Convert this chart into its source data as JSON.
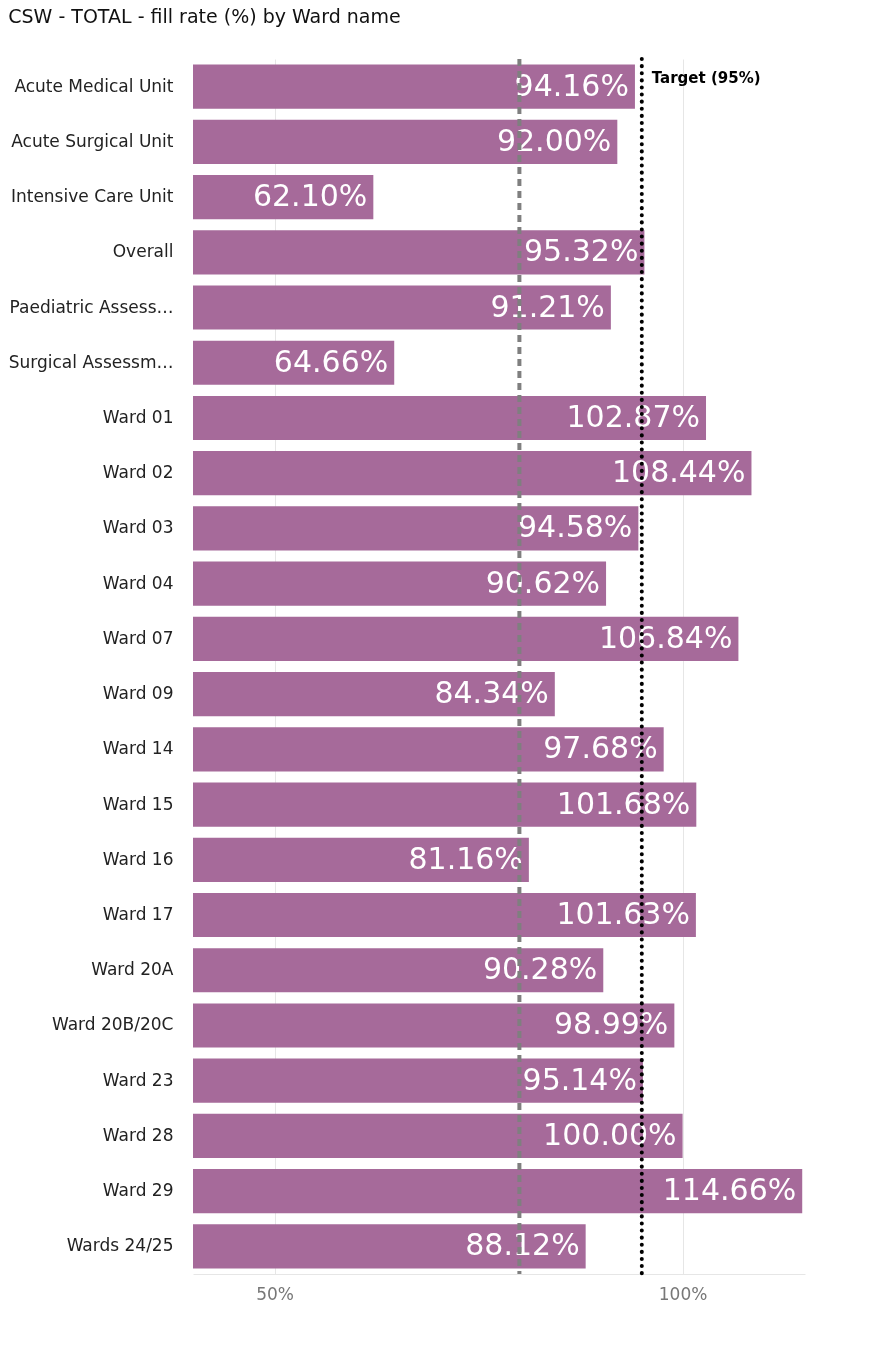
{
  "chart_data": {
    "type": "bar",
    "orientation": "horizontal",
    "title": "CSW - TOTAL - fill rate (%) by Ward name",
    "categories": [
      "Acute Medical Unit",
      "Acute Surgical Unit",
      "Intensive Care Unit",
      "Overall",
      "Paediatric Assess…",
      "Surgical Assessm…",
      "Ward 01",
      "Ward 02",
      "Ward 03",
      "Ward 04",
      "Ward 07",
      "Ward 09",
      "Ward 14",
      "Ward 15",
      "Ward 16",
      "Ward 17",
      "Ward 20A",
      "Ward 20B/20C",
      "Ward 23",
      "Ward 28",
      "Ward 29",
      "Wards 24/25"
    ],
    "values": [
      94.16,
      92.0,
      62.1,
      95.32,
      91.21,
      64.66,
      102.87,
      108.44,
      94.58,
      90.62,
      106.84,
      84.34,
      97.68,
      101.68,
      81.16,
      101.63,
      90.28,
      98.99,
      95.14,
      100.0,
      114.66,
      88.12
    ],
    "value_labels": [
      "94.16%",
      "92.00%",
      "62.10%",
      "95.32%",
      "91.21%",
      "64.66%",
      "102.87%",
      "108.44%",
      "94.58%",
      "90.62%",
      "106.84%",
      "84.34%",
      "97.68%",
      "101.68%",
      "81.16%",
      "101.63%",
      "90.28%",
      "98.99%",
      "95.14%",
      "100.00%",
      "114.66%",
      "88.12%"
    ],
    "color": "#a66a9a",
    "xlim": [
      40,
      115
    ],
    "xticks": [
      {
        "value": 50,
        "label": "50%"
      },
      {
        "value": 100,
        "label": "100%"
      }
    ],
    "grid": "x",
    "ref_lines": [
      {
        "axis": "x",
        "value": 80,
        "color": "#7f7f7f",
        "line_style": "dashed"
      },
      {
        "axis": "x",
        "value": 95,
        "label": "Target (95%)",
        "color": "#000000",
        "line_style": "dotted"
      }
    ]
  }
}
